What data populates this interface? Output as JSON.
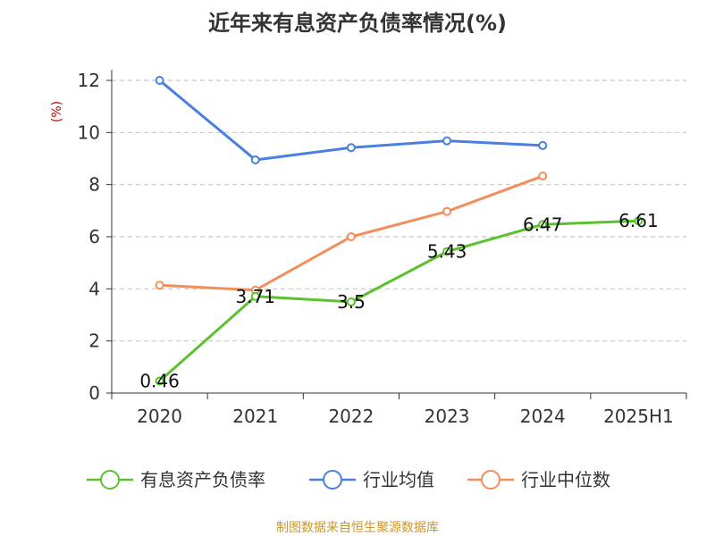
{
  "chart_data": {
    "type": "line",
    "title": "近年来有息资产负债率情况(%)",
    "ylabel": "(%)",
    "xlabel": "",
    "categories": [
      "2020",
      "2021",
      "2022",
      "2023",
      "2024",
      "2025H1"
    ],
    "ylim": [
      0,
      12
    ],
    "yticks": [
      0,
      2,
      4,
      6,
      8,
      10,
      12
    ],
    "grid": true,
    "legend_position": "bottom",
    "series": [
      {
        "name": "有息资产负债率",
        "color": "#5cc12e",
        "values": [
          0.46,
          3.71,
          3.5,
          5.43,
          6.47,
          6.61
        ],
        "labels": [
          "0.46",
          "3.71",
          "3.5",
          "5.43",
          "6.47",
          "6.61"
        ]
      },
      {
        "name": "行业均值",
        "color": "#4a7fe0",
        "values": [
          12.0,
          8.95,
          9.42,
          9.68,
          9.5,
          null
        ]
      },
      {
        "name": "行业中位数",
        "color": "#f28e5c",
        "values": [
          4.14,
          3.95,
          6.0,
          6.97,
          8.33,
          null
        ]
      }
    ]
  },
  "footer": {
    "source": "制图数据来自恒生聚源数据库"
  }
}
